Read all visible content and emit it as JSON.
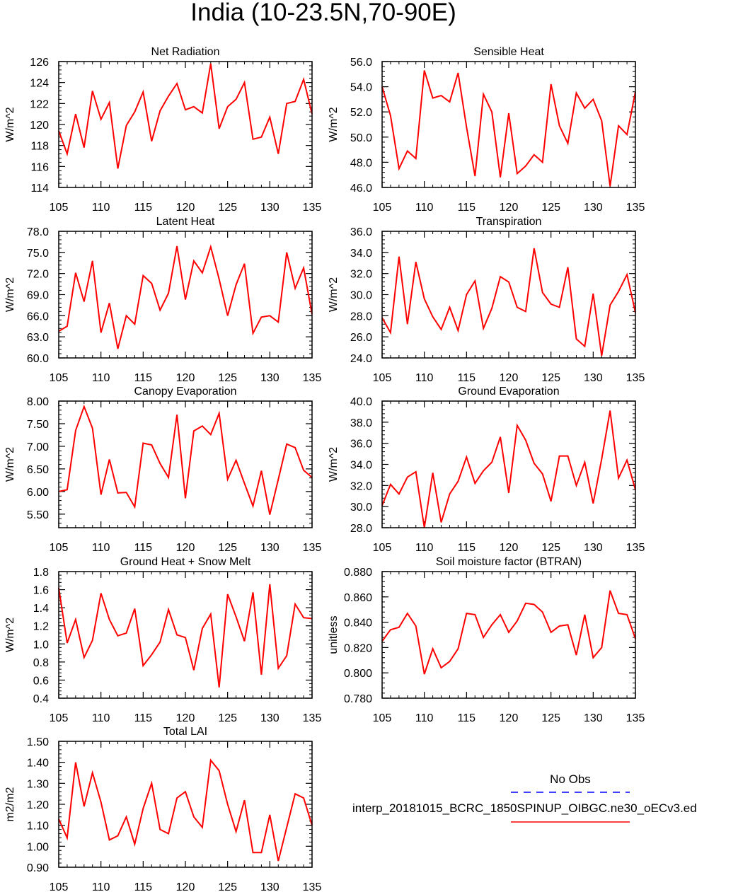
{
  "title": "India (10-23.5N,70-90E)",
  "legend": {
    "obs_label": "No Obs",
    "model_label": "interp_20181015_BCRC_1850SPINUP_OIBGC.ne30_oECv3.ed",
    "model_color": "#ff0000",
    "obs_color": "#0000ff"
  },
  "chart_data": [
    {
      "type": "line",
      "title": "Net Radiation",
      "ylabel": "W/m^2",
      "xlim": [
        105,
        135
      ],
      "ylim": [
        114,
        126
      ],
      "xticks": [
        "105",
        "110",
        "115",
        "120",
        "125",
        "130",
        "135"
      ],
      "yticks": [
        "114",
        "116",
        "118",
        "120",
        "122",
        "124",
        "126"
      ],
      "x": [
        105,
        106,
        107,
        108,
        109,
        110,
        111,
        112,
        113,
        114,
        115,
        116,
        117,
        118,
        119,
        120,
        121,
        122,
        123,
        124,
        125,
        126,
        127,
        128,
        129,
        130,
        131,
        132,
        133,
        134,
        135
      ],
      "series": [
        {
          "values": [
            119.4,
            117.2,
            121.0,
            117.8,
            123.2,
            120.5,
            122.1,
            115.8,
            119.9,
            121.2,
            123.1,
            118.4,
            121.3,
            122.7,
            123.9,
            121.4,
            121.7,
            121.1,
            125.8,
            119.6,
            121.7,
            122.4,
            124.0,
            118.6,
            118.8,
            120.7,
            117.2,
            122.0,
            122.2,
            124.3,
            121.0
          ]
        }
      ]
    },
    {
      "type": "line",
      "title": "Sensible Heat",
      "ylabel": "W/m^2",
      "xlim": [
        105,
        135
      ],
      "ylim": [
        46,
        56
      ],
      "xticks": [
        "105",
        "110",
        "115",
        "120",
        "125",
        "130",
        "135"
      ],
      "yticks": [
        "46.0",
        "48.0",
        "50.0",
        "52.0",
        "54.0",
        "56.0"
      ],
      "x": [
        105,
        106,
        107,
        108,
        109,
        110,
        111,
        112,
        113,
        114,
        115,
        116,
        117,
        118,
        119,
        120,
        121,
        122,
        123,
        124,
        125,
        126,
        127,
        128,
        129,
        130,
        131,
        132,
        133,
        134,
        135
      ],
      "series": [
        {
          "values": [
            54.0,
            51.7,
            47.5,
            48.9,
            48.3,
            55.3,
            53.1,
            53.3,
            52.8,
            55.1,
            50.8,
            46.9,
            53.4,
            52.0,
            46.8,
            51.9,
            47.1,
            47.7,
            48.6,
            48.0,
            54.2,
            50.9,
            49.5,
            53.5,
            52.3,
            53.0,
            51.3,
            46.1,
            50.9,
            50.2,
            53.6
          ]
        }
      ]
    },
    {
      "type": "line",
      "title": "Latent Heat",
      "ylabel": "W/m^2",
      "xlim": [
        105,
        135
      ],
      "ylim": [
        60,
        78
      ],
      "xticks": [
        "105",
        "110",
        "115",
        "120",
        "125",
        "130",
        "135"
      ],
      "yticks": [
        "60.0",
        "63.0",
        "66.0",
        "69.0",
        "72.0",
        "75.0",
        "78.0"
      ],
      "x": [
        105,
        106,
        107,
        108,
        109,
        110,
        111,
        112,
        113,
        114,
        115,
        116,
        117,
        118,
        119,
        120,
        121,
        122,
        123,
        124,
        125,
        126,
        127,
        128,
        129,
        130,
        131,
        132,
        133,
        134,
        135
      ],
      "series": [
        {
          "values": [
            63.8,
            64.5,
            72.1,
            68.0,
            73.8,
            63.6,
            67.8,
            61.3,
            66.0,
            64.8,
            71.7,
            70.6,
            66.8,
            69.2,
            75.9,
            68.3,
            73.8,
            72.1,
            75.8,
            71.2,
            66.0,
            70.4,
            73.4,
            63.5,
            65.8,
            66.0,
            65.1,
            75.0,
            69.9,
            72.8,
            66.2
          ]
        }
      ]
    },
    {
      "type": "line",
      "title": "Transpiration",
      "ylabel": "W/m^2",
      "xlim": [
        105,
        135
      ],
      "ylim": [
        24,
        36
      ],
      "xticks": [
        "105",
        "110",
        "115",
        "120",
        "125",
        "130",
        "135"
      ],
      "yticks": [
        "24.0",
        "26.0",
        "28.0",
        "30.0",
        "32.0",
        "34.0",
        "36.0"
      ],
      "x": [
        105,
        106,
        107,
        108,
        109,
        110,
        111,
        112,
        113,
        114,
        115,
        116,
        117,
        118,
        119,
        120,
        121,
        122,
        123,
        124,
        125,
        126,
        127,
        128,
        129,
        130,
        131,
        132,
        133,
        134,
        135
      ],
      "series": [
        {
          "values": [
            27.8,
            26.4,
            33.6,
            27.2,
            33.1,
            29.6,
            27.9,
            26.7,
            28.8,
            26.6,
            30.0,
            31.3,
            26.8,
            28.7,
            31.7,
            31.2,
            28.8,
            28.4,
            34.4,
            30.2,
            29.1,
            28.8,
            32.6,
            25.8,
            25.1,
            30.1,
            24.2,
            29.0,
            30.3,
            31.9,
            28.3
          ]
        }
      ]
    },
    {
      "type": "line",
      "title": "Canopy Evaporation",
      "ylabel": "W/m^2",
      "xlim": [
        105,
        135
      ],
      "ylim": [
        5.2,
        8.0
      ],
      "xticks": [
        "105",
        "110",
        "115",
        "120",
        "125",
        "130",
        "135"
      ],
      "yticks": [
        "5.50",
        "6.00",
        "6.50",
        "7.00",
        "7.50",
        "8.00"
      ],
      "x": [
        105,
        106,
        107,
        108,
        109,
        110,
        111,
        112,
        113,
        114,
        115,
        116,
        117,
        118,
        119,
        120,
        121,
        122,
        123,
        124,
        125,
        126,
        127,
        128,
        129,
        130,
        131,
        132,
        133,
        134,
        135
      ],
      "series": [
        {
          "values": [
            6.0,
            6.04,
            7.35,
            7.88,
            7.4,
            5.93,
            6.71,
            5.97,
            5.98,
            5.66,
            7.07,
            7.03,
            6.62,
            6.31,
            7.7,
            5.85,
            7.34,
            7.45,
            7.26,
            7.73,
            6.27,
            6.69,
            6.18,
            5.68,
            6.46,
            5.49,
            6.27,
            7.05,
            6.97,
            6.47,
            6.31
          ]
        }
      ]
    },
    {
      "type": "line",
      "title": "Ground Evaporation",
      "ylabel": "W/m^2",
      "xlim": [
        105,
        135
      ],
      "ylim": [
        28,
        40
      ],
      "xticks": [
        "105",
        "110",
        "115",
        "120",
        "125",
        "130",
        "135"
      ],
      "yticks": [
        "28.0",
        "30.0",
        "32.0",
        "34.0",
        "36.0",
        "38.0",
        "40.0"
      ],
      "x": [
        105,
        106,
        107,
        108,
        109,
        110,
        111,
        112,
        113,
        114,
        115,
        116,
        117,
        118,
        119,
        120,
        121,
        122,
        123,
        124,
        125,
        126,
        127,
        128,
        129,
        130,
        131,
        132,
        133,
        134,
        135
      ],
      "series": [
        {
          "values": [
            30.1,
            32.1,
            31.2,
            32.8,
            33.3,
            28.0,
            33.2,
            28.5,
            31.2,
            32.4,
            34.7,
            32.2,
            33.4,
            34.2,
            36.6,
            31.3,
            37.7,
            36.3,
            34.1,
            33.1,
            30.5,
            34.8,
            34.8,
            32.0,
            34.2,
            30.3,
            34.5,
            39.1,
            32.7,
            34.4,
            31.6
          ]
        }
      ]
    },
    {
      "type": "line",
      "title": "Ground Heat + Snow Melt",
      "ylabel": "W/m^2",
      "xlim": [
        105,
        135
      ],
      "ylim": [
        0.4,
        1.8
      ],
      "xticks": [
        "105",
        "110",
        "115",
        "120",
        "125",
        "130",
        "135"
      ],
      "yticks": [
        "0.4",
        "0.6",
        "0.8",
        "1.0",
        "1.2",
        "1.4",
        "1.6",
        "1.8"
      ],
      "x": [
        105,
        106,
        107,
        108,
        109,
        110,
        111,
        112,
        113,
        114,
        115,
        116,
        117,
        118,
        119,
        120,
        121,
        122,
        123,
        124,
        125,
        126,
        127,
        128,
        129,
        130,
        131,
        132,
        133,
        134,
        135
      ],
      "series": [
        {
          "values": [
            1.62,
            1.01,
            1.27,
            0.85,
            1.04,
            1.56,
            1.27,
            1.09,
            1.12,
            1.39,
            0.76,
            0.88,
            1.02,
            1.38,
            1.1,
            1.07,
            0.71,
            1.17,
            1.33,
            0.52,
            1.55,
            1.3,
            1.03,
            1.57,
            0.66,
            1.66,
            0.73,
            0.87,
            1.44,
            1.29,
            1.28
          ]
        }
      ]
    },
    {
      "type": "line",
      "title": "Soil moisture factor (BTRAN)",
      "ylabel": "unitless",
      "xlim": [
        105,
        135
      ],
      "ylim": [
        0.78,
        0.88
      ],
      "xticks": [
        "105",
        "110",
        "115",
        "120",
        "125",
        "130",
        "135"
      ],
      "yticks": [
        "0.780",
        "0.800",
        "0.820",
        "0.840",
        "0.860",
        "0.880"
      ],
      "x": [
        105,
        106,
        107,
        108,
        109,
        110,
        111,
        112,
        113,
        114,
        115,
        116,
        117,
        118,
        119,
        120,
        121,
        122,
        123,
        124,
        125,
        126,
        127,
        128,
        129,
        130,
        131,
        132,
        133,
        134,
        135
      ],
      "series": [
        {
          "values": [
            0.825,
            0.834,
            0.836,
            0.847,
            0.837,
            0.799,
            0.819,
            0.804,
            0.809,
            0.819,
            0.847,
            0.846,
            0.828,
            0.838,
            0.846,
            0.832,
            0.841,
            0.855,
            0.854,
            0.848,
            0.832,
            0.837,
            0.838,
            0.814,
            0.846,
            0.812,
            0.82,
            0.865,
            0.847,
            0.846,
            0.827
          ]
        }
      ]
    },
    {
      "type": "line",
      "title": "Total LAI",
      "ylabel": "m2/m2",
      "xlim": [
        105,
        135
      ],
      "ylim": [
        0.9,
        1.5
      ],
      "xticks": [
        "105",
        "110",
        "115",
        "120",
        "125",
        "130",
        "135"
      ],
      "yticks": [
        "0.90",
        "1.00",
        "1.10",
        "1.20",
        "1.30",
        "1.40",
        "1.50"
      ],
      "x": [
        105,
        106,
        107,
        108,
        109,
        110,
        111,
        112,
        113,
        114,
        115,
        116,
        117,
        118,
        119,
        120,
        121,
        122,
        123,
        124,
        125,
        126,
        127,
        128,
        129,
        130,
        131,
        132,
        133,
        134,
        135
      ],
      "series": [
        {
          "values": [
            1.13,
            1.04,
            1.4,
            1.19,
            1.35,
            1.21,
            1.03,
            1.05,
            1.14,
            1.01,
            1.18,
            1.3,
            1.08,
            1.06,
            1.23,
            1.26,
            1.14,
            1.09,
            1.41,
            1.36,
            1.2,
            1.07,
            1.22,
            0.97,
            0.97,
            1.15,
            0.93,
            1.09,
            1.25,
            1.23,
            1.1
          ]
        }
      ]
    }
  ]
}
